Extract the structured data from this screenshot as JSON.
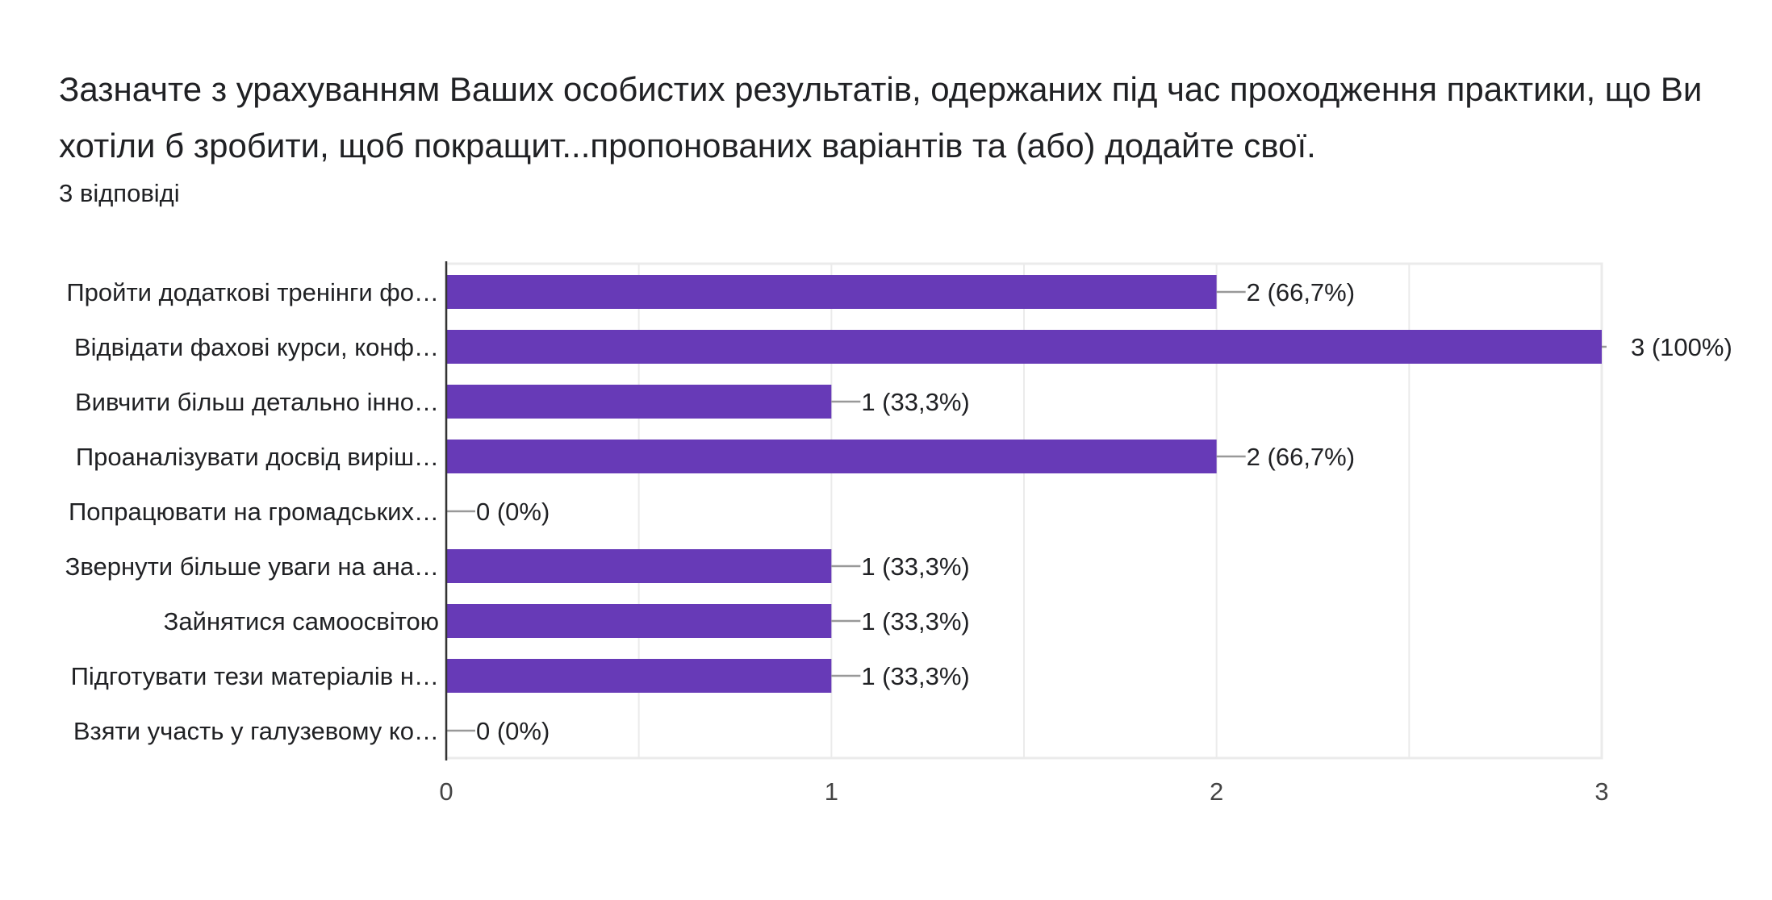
{
  "question": {
    "title": "Зазначте з урахуванням Ваших особистих результатів, одержаних під час проходження практики, що Ви хотіли б зробити, щоб покращит...пропонованих варіантів та (або) додайте свої.",
    "responses": "3 відповіді"
  },
  "chart_data": {
    "type": "bar",
    "orientation": "horizontal",
    "categories": [
      "Пройти додаткові тренінги фо…",
      "Відвідати фахові курси, конф…",
      "Вивчити більш детально інно…",
      "Проаналізувати досвід виріш…",
      "Попрацювати на громадських…",
      "Звернути більше уваги на ана…",
      "Зайнятися самоосвітою",
      "Підготувати тези матеріалів н…",
      "Взяти участь у галузевому ко…"
    ],
    "values": [
      2,
      3,
      1,
      2,
      0,
      1,
      1,
      1,
      0
    ],
    "data_labels": [
      "2 (66,7%)",
      "3 (100%)",
      "1 (33,3%)",
      "2 (66,7%)",
      "0 (0%)",
      "1 (33,3%)",
      "1 (33,3%)",
      "1 (33,3%)",
      "0 (0%)"
    ],
    "xlim": [
      0,
      3
    ],
    "x_ticks": [
      "0",
      "1",
      "2",
      "3"
    ],
    "grid": true,
    "bar_color": "#673ab7"
  }
}
